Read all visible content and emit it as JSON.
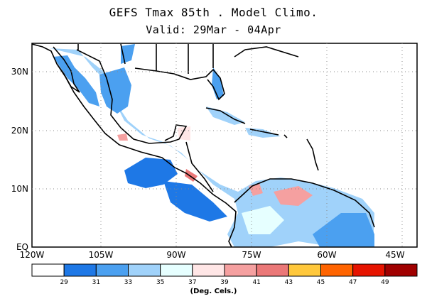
{
  "title": "GEFS Tmax 85th . Model Climo.",
  "subtitle": "Valid: 29Mar - 04Apr",
  "map": {
    "lat_ticks": [
      "30N",
      "20N",
      "10N",
      "EQ"
    ],
    "lon_ticks": [
      "120W",
      "105W",
      "90W",
      "75W",
      "60W",
      "45W"
    ],
    "lon_range": [
      -120,
      -42
    ],
    "lat_range": [
      0,
      35
    ]
  },
  "colorbar": {
    "colors": [
      "#ffffff",
      "#1e78e6",
      "#4ba0f0",
      "#a0d2fa",
      "#e6ffff",
      "#ffe6e6",
      "#f5a0a0",
      "#eb7878",
      "#ffc83c",
      "#ff6400",
      "#e61400",
      "#a00000"
    ],
    "labels": [
      "29",
      "31",
      "33",
      "35",
      "37",
      "39",
      "41",
      "43",
      "45",
      "47",
      "49"
    ],
    "units": "(Deg. Cels.)"
  }
}
